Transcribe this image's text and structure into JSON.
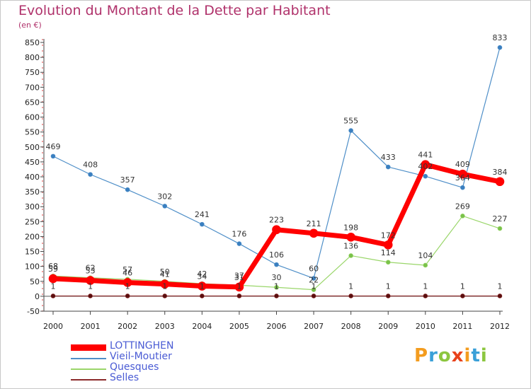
{
  "title": "Evolution du Montant de la Dette par Habitant",
  "unit_label": "(en €)",
  "logo": {
    "text": "Proxiti",
    "colors": [
      "#f39c1f",
      "#3aa0d8",
      "#8cc63f",
      "#e8421b"
    ]
  },
  "chart_data": {
    "type": "line",
    "x": [
      "2000",
      "2001",
      "2002",
      "2003",
      "2004",
      "2005",
      "2006",
      "2007",
      "2008",
      "2009",
      "2010",
      "2011",
      "2012"
    ],
    "ylim": [
      -50,
      850
    ],
    "yticks": [
      -50,
      0,
      50,
      100,
      150,
      200,
      250,
      300,
      350,
      400,
      450,
      500,
      550,
      600,
      650,
      700,
      750,
      800,
      850
    ],
    "grid": false,
    "legend_position": "bottom-left",
    "series": [
      {
        "name": "Vieil-Moutier",
        "color": "#4f8fc8",
        "marker": "#3a7fc0",
        "width": 1.2,
        "values": [
          469,
          408,
          357,
          302,
          241,
          176,
          106,
          60,
          555,
          433,
          402,
          364,
          833
        ],
        "labels": [
          "469",
          "408",
          "357",
          "302",
          "241",
          "176",
          "106",
          "60",
          "555",
          "433",
          "402",
          "364",
          "833"
        ]
      },
      {
        "name": "Quesques",
        "color": "#9ad66a",
        "marker": "#7ac24a",
        "width": 1.2,
        "values": [
          68,
          62,
          57,
          50,
          42,
          37,
          30,
          22,
          136,
          114,
          104,
          269,
          227
        ],
        "labels": [
          "68",
          "62",
          "57",
          "50",
          "42",
          "37",
          "30",
          "22",
          "136",
          "114",
          "104",
          "269",
          "227"
        ]
      },
      {
        "name": "Selles",
        "color": "#8b2a2a",
        "marker": "#5a0e0e",
        "width": 1.2,
        "values": [
          1,
          1,
          1,
          1,
          1,
          1,
          1,
          1,
          1,
          1,
          1,
          1,
          1
        ],
        "labels": [
          "1",
          "1",
          "1",
          "1",
          "1",
          "1",
          "1",
          "1",
          "1",
          "1",
          "1",
          "1",
          "1"
        ]
      },
      {
        "name": "LOTTINGHEN",
        "color": "#ff0000",
        "marker": "#ff0000",
        "width": 7,
        "values": [
          59,
          53,
          46,
          41,
          34,
          31,
          223,
          211,
          198,
          172,
          441,
          409,
          384
        ],
        "labels": [
          "59",
          "53",
          "46",
          "41",
          "34",
          "31",
          "223",
          "211",
          "198",
          "172",
          "441",
          "409",
          "384"
        ]
      }
    ],
    "legend_order": [
      "LOTTINGHEN",
      "Vieil-Moutier",
      "Quesques",
      "Selles"
    ]
  }
}
